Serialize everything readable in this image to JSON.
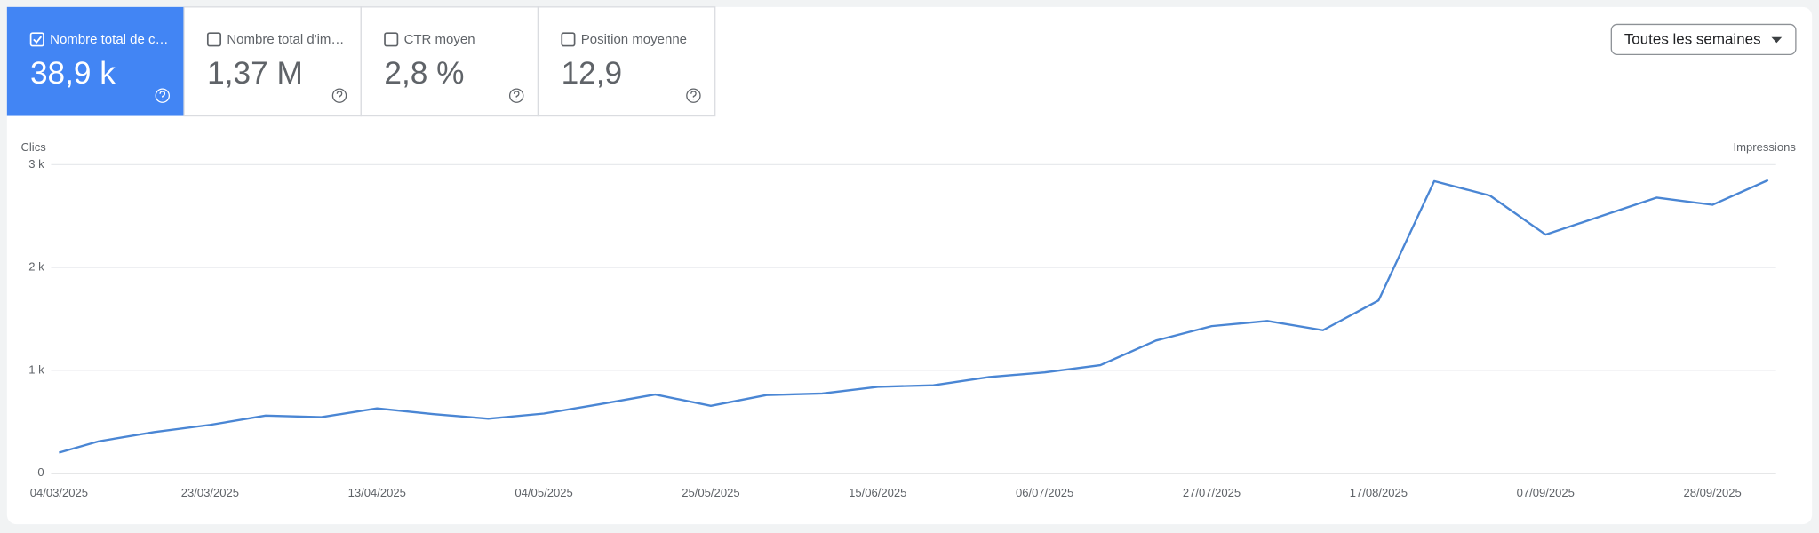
{
  "metrics": [
    {
      "label": "Nombre total de c…",
      "value": "38,9 k",
      "checked": true
    },
    {
      "label": "Nombre total d'im…",
      "value": "1,37 M",
      "checked": false
    },
    {
      "label": "CTR moyen",
      "value": "2,8 %",
      "checked": false
    },
    {
      "label": "Position moyenne",
      "value": "12,9",
      "checked": false
    }
  ],
  "period_selector": "Toutes les semaines",
  "chart_data": {
    "type": "line",
    "y_label": "Clics",
    "y2_label": "Impressions",
    "x": [
      "04/03/2025",
      "09/03/2025",
      "16/03/2025",
      "23/03/2025",
      "30/03/2025",
      "06/04/2025",
      "13/04/2025",
      "20/04/2025",
      "27/04/2025",
      "04/05/2025",
      "11/05/2025",
      "18/05/2025",
      "25/05/2025",
      "01/06/2025",
      "08/06/2025",
      "15/06/2025",
      "22/06/2025",
      "29/06/2025",
      "06/07/2025",
      "13/07/2025",
      "20/07/2025",
      "27/07/2025",
      "03/08/2025",
      "10/08/2025",
      "17/08/2025",
      "24/08/2025",
      "31/08/2025",
      "07/09/2025",
      "14/09/2025",
      "21/09/2025",
      "28/09/2025",
      "05/10/2025"
    ],
    "values": [
      200,
      310,
      400,
      470,
      560,
      545,
      630,
      575,
      530,
      580,
      670,
      765,
      655,
      760,
      775,
      840,
      855,
      935,
      980,
      1050,
      1290,
      1430,
      1480,
      1390,
      1680,
      2840,
      2700,
      2320,
      2500,
      2680,
      2610,
      2850
    ],
    "color": "#4a86d4",
    "xlim": [
      "03/03/2025",
      "06/10/2025"
    ],
    "xticks": [
      "04/03/2025",
      "23/03/2025",
      "13/04/2025",
      "04/05/2025",
      "25/05/2025",
      "15/06/2025",
      "06/07/2025",
      "27/07/2025",
      "17/08/2025",
      "07/09/2025",
      "28/09/2025"
    ],
    "ylim": [
      0,
      3000
    ],
    "yticks": [
      0,
      {
        "value": 1000,
        "label": "1 k"
      },
      {
        "value": 2000,
        "label": "2 k"
      },
      {
        "value": 3000,
        "label": "3 k"
      }
    ],
    "grid": true
  }
}
